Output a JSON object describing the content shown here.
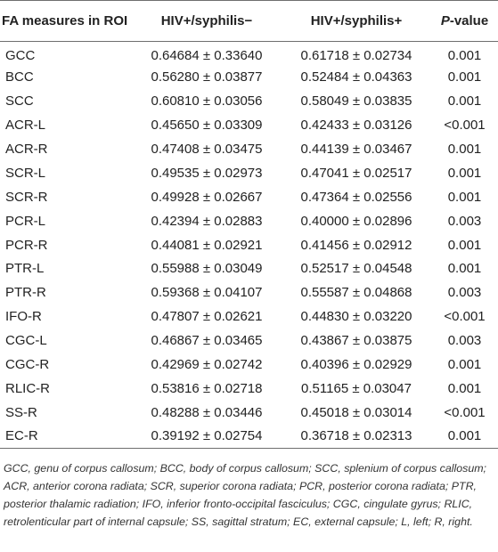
{
  "table": {
    "headers": {
      "roi": "FA measures in ROI",
      "neg": "HIV+/syphilis−",
      "pos": "HIV+/syphilis+",
      "p_italic": "P",
      "p_rest": "-value"
    },
    "rows": [
      {
        "roi": "GCC",
        "neg": "0.64684 ± 0.33640",
        "pos": "0.61718 ± 0.02734",
        "p": "0.001"
      },
      {
        "roi": "BCC",
        "neg": "0.56280 ± 0.03877",
        "pos": "0.52484 ± 0.04363",
        "p": "0.001"
      },
      {
        "roi": "SCC",
        "neg": "0.60810 ± 0.03056",
        "pos": "0.58049 ± 0.03835",
        "p": "0.001"
      },
      {
        "roi": "ACR-L",
        "neg": "0.45650 ± 0.03309",
        "pos": "0.42433 ± 0.03126",
        "p": "<0.001"
      },
      {
        "roi": "ACR-R",
        "neg": "0.47408 ± 0.03475",
        "pos": "0.44139 ± 0.03467",
        "p": "0.001"
      },
      {
        "roi": "SCR-L",
        "neg": "0.49535 ± 0.02973",
        "pos": "0.47041 ± 0.02517",
        "p": "0.001"
      },
      {
        "roi": "SCR-R",
        "neg": "0.49928 ± 0.02667",
        "pos": "0.47364 ± 0.02556",
        "p": "0.001"
      },
      {
        "roi": "PCR-L",
        "neg": "0.42394 ± 0.02883",
        "pos": "0.40000 ± 0.02896",
        "p": "0.003"
      },
      {
        "roi": "PCR-R",
        "neg": "0.44081 ± 0.02921",
        "pos": "0.41456 ± 0.02912",
        "p": "0.001"
      },
      {
        "roi": "PTR-L",
        "neg": "0.55988 ± 0.03049",
        "pos": "0.52517 ± 0.04548",
        "p": "0.001"
      },
      {
        "roi": "PTR-R",
        "neg": "0.59368 ± 0.04107",
        "pos": "0.55587 ± 0.04868",
        "p": "0.003"
      },
      {
        "roi": "IFO-R",
        "neg": "0.47807 ± 0.02621",
        "pos": "0.44830 ± 0.03220",
        "p": "<0.001"
      },
      {
        "roi": "CGC-L",
        "neg": "0.46867 ± 0.03465",
        "pos": "0.43867 ± 0.03875",
        "p": "0.003"
      },
      {
        "roi": "CGC-R",
        "neg": "0.42969 ± 0.02742",
        "pos": "0.40396 ± 0.02929",
        "p": "0.001"
      },
      {
        "roi": "RLIC-R",
        "neg": "0.53816 ± 0.02718",
        "pos": "0.51165 ± 0.03047",
        "p": "0.001"
      },
      {
        "roi": "SS-R",
        "neg": "0.48288 ± 0.03446",
        "pos": "0.45018 ± 0.03014",
        "p": "<0.001"
      },
      {
        "roi": "EC-R",
        "neg": "0.39192 ± 0.02754",
        "pos": "0.36718 ± 0.02313",
        "p": "0.001"
      }
    ]
  },
  "footnote": "GCC, genu of corpus callosum; BCC, body of corpus callosum; SCC, splenium of corpus callosum; ACR, anterior corona radiata; SCR, superior corona radiata; PCR, posterior corona radiata; PTR, posterior thalamic radiation; IFO, inferior fronto-occipital fasciculus; CGC, cingulate gyrus; RLIC, retrolenticular part of internal capsule; SS, sagittal stratum; EC, external capsule; L, left; R, right."
}
